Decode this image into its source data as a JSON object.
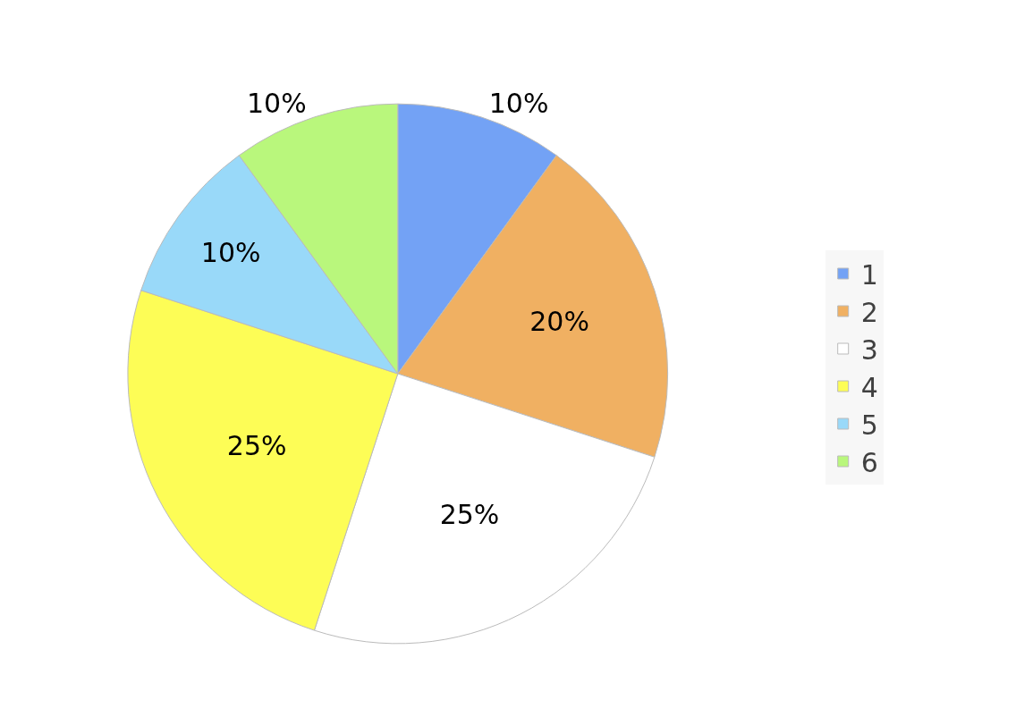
{
  "chart_data": {
    "type": "pie",
    "categories": [
      "1",
      "2",
      "3",
      "4",
      "5",
      "6"
    ],
    "values": [
      10,
      20,
      25,
      25,
      10,
      10
    ],
    "value_labels": [
      "10%",
      "20%",
      "25%",
      "25%",
      "10%",
      "10%"
    ],
    "colors": [
      "#73a2f5",
      "#f0b062",
      "#ffffff",
      "#fdfd56",
      "#99d9f9",
      "#b9f77c"
    ],
    "legend": "right"
  }
}
